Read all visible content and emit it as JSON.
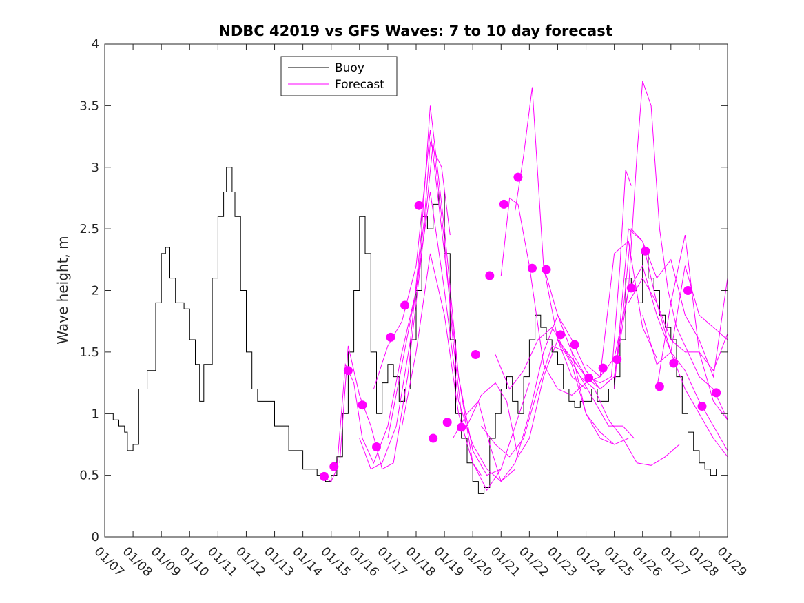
{
  "chart_data": {
    "type": "line",
    "title": "NDBC 42019 vs GFS Waves: 7 to 10 day forecast",
    "xlabel": "",
    "ylabel": "Wave height, m",
    "xlim": [
      0,
      22
    ],
    "ylim": [
      0,
      4
    ],
    "yticks": [
      0,
      0.5,
      1,
      1.5,
      2,
      2.5,
      3,
      3.5,
      4
    ],
    "ytick_labels": [
      "0",
      "0.5",
      "1",
      "1.5",
      "2",
      "2.5",
      "3",
      "3.5",
      "4"
    ],
    "xticks": [
      0,
      1,
      2,
      3,
      4,
      5,
      6,
      7,
      8,
      9,
      10,
      11,
      12,
      13,
      14,
      15,
      16,
      17,
      18,
      19,
      20,
      21,
      22
    ],
    "xtick_labels": [
      "01/07",
      "01/08",
      "01/09",
      "01/10",
      "01/11",
      "01/12",
      "01/13",
      "01/14",
      "01/15",
      "01/16",
      "01/17",
      "01/18",
      "01/19",
      "01/20",
      "01/21",
      "01/22",
      "01/23",
      "01/24",
      "01/25",
      "01/26",
      "01/27",
      "01/28",
      "01/29"
    ],
    "legend": [
      {
        "name": "Buoy",
        "color": "#000000"
      },
      {
        "name": "Forecast",
        "color": "#ff00ff"
      }
    ],
    "colors": {
      "buoy": "#000000",
      "forecast": "#ff00ff"
    },
    "buoy": {
      "name": "Buoy",
      "x": [
        0,
        0.3,
        0.5,
        0.7,
        0.8,
        1.0,
        1.2,
        1.5,
        1.8,
        2.0,
        2.15,
        2.3,
        2.5,
        2.8,
        3.0,
        3.2,
        3.35,
        3.5,
        3.8,
        4.0,
        4.2,
        4.3,
        4.5,
        4.6,
        4.8,
        5.0,
        5.2,
        5.4,
        5.8,
        6.0,
        6.5,
        7.0,
        7.5,
        7.8,
        8.0,
        8.2,
        8.4,
        8.6,
        8.8,
        9.0,
        9.2,
        9.4,
        9.6,
        9.8,
        10.0,
        10.2,
        10.4,
        10.6,
        10.8,
        11.0,
        11.2,
        11.4,
        11.6,
        11.8,
        12.0,
        12.2,
        12.4,
        12.6,
        12.8,
        13.0,
        13.2,
        13.4,
        13.6,
        13.8,
        14.0,
        14.2,
        14.4,
        14.6,
        14.8,
        15.0,
        15.2,
        15.4,
        15.6,
        15.8,
        16.0,
        16.2,
        16.4,
        16.6,
        16.8,
        17.0,
        17.2,
        17.4,
        17.6,
        17.8,
        18.0,
        18.2,
        18.4,
        18.6,
        18.8,
        19.0,
        19.2,
        19.4,
        19.6,
        19.8,
        20.0,
        20.2,
        20.4,
        20.6,
        20.8,
        21.0,
        21.2,
        21.4,
        21.6
      ],
      "y": [
        1.0,
        0.95,
        0.9,
        0.85,
        0.7,
        0.75,
        1.2,
        1.35,
        1.9,
        2.3,
        2.35,
        2.1,
        1.9,
        1.85,
        1.6,
        1.4,
        1.1,
        1.4,
        2.1,
        2.6,
        2.8,
        3.0,
        2.8,
        2.6,
        2.0,
        1.5,
        1.2,
        1.1,
        1.1,
        0.9,
        0.7,
        0.55,
        0.5,
        0.45,
        0.5,
        0.65,
        1.0,
        1.5,
        2.0,
        2.6,
        2.3,
        1.5,
        1.0,
        1.25,
        1.4,
        1.3,
        1.1,
        1.2,
        1.6,
        2.0,
        2.6,
        2.5,
        2.7,
        2.8,
        2.3,
        1.6,
        1.0,
        0.8,
        0.6,
        0.45,
        0.35,
        0.4,
        0.8,
        1.0,
        1.2,
        1.3,
        1.1,
        1.0,
        1.3,
        1.6,
        1.8,
        1.7,
        1.6,
        1.5,
        1.4,
        1.2,
        1.1,
        1.05,
        1.1,
        1.1,
        1.2,
        1.1,
        1.1,
        1.2,
        1.3,
        1.6,
        2.1,
        2.0,
        1.9,
        2.3,
        2.1,
        2.0,
        1.8,
        1.7,
        1.6,
        1.3,
        1.0,
        0.85,
        0.7,
        0.6,
        0.55,
        0.5,
        0.55
      ]
    },
    "forecast_lines": [
      {
        "x": [
          7.75,
          8.0,
          8.2,
          8.5,
          8.8,
          9.1,
          9.5,
          10.0,
          10.5,
          11.0,
          11.3,
          11.5,
          11.9,
          12.2
        ],
        "y": [
          0.48,
          0.45,
          0.55,
          1.4,
          1.25,
          0.8,
          0.6,
          0.9,
          1.5,
          2.0,
          2.6,
          3.2,
          3.0,
          2.45
        ]
      },
      {
        "x": [
          8.3,
          8.6,
          9.0,
          9.4,
          9.8,
          10.2,
          10.7,
          11.2,
          11.6,
          12.0,
          12.3,
          12.6
        ],
        "y": [
          0.6,
          1.55,
          1.15,
          0.9,
          0.55,
          0.6,
          1.3,
          2.3,
          3.2,
          2.4,
          1.6,
          1.0
        ]
      },
      {
        "x": [
          9.0,
          9.4,
          9.8,
          10.3,
          10.8,
          11.2,
          11.5,
          12.0,
          12.5,
          13.0,
          13.3
        ],
        "y": [
          0.8,
          0.55,
          0.6,
          0.9,
          1.6,
          2.5,
          3.5,
          2.5,
          1.3,
          0.6,
          0.5
        ]
      },
      {
        "x": [
          9.5,
          10.0,
          10.5,
          11.0,
          11.5,
          12.0,
          12.5,
          13.0,
          13.5,
          14.0
        ],
        "y": [
          1.2,
          1.55,
          1.75,
          2.2,
          3.3,
          2.3,
          1.3,
          0.7,
          0.5,
          0.55
        ]
      },
      {
        "x": [
          10.0,
          10.5,
          11.0,
          11.5,
          12.0,
          12.5,
          13.0,
          13.5,
          14.0,
          14.5
        ],
        "y": [
          0.8,
          1.4,
          2.0,
          2.8,
          2.0,
          1.1,
          0.75,
          0.55,
          0.45,
          0.55
        ]
      },
      {
        "x": [
          10.5,
          11.0,
          11.5,
          12.0,
          12.5,
          13.0,
          13.5,
          14.0,
          14.5,
          15.0
        ],
        "y": [
          0.9,
          1.5,
          2.3,
          1.8,
          1.0,
          0.6,
          0.38,
          0.55,
          0.9,
          1.25
        ]
      },
      {
        "x": [
          12.3,
          12.8,
          13.2,
          13.6,
          14.0,
          14.5,
          15.0,
          15.5,
          16.0,
          16.5,
          17.0,
          17.5,
          18.0
        ],
        "y": [
          0.8,
          1.0,
          1.1,
          0.75,
          0.45,
          0.6,
          1.0,
          1.5,
          1.8,
          1.5,
          1.0,
          0.8,
          0.75
        ]
      },
      {
        "x": [
          12.8,
          13.3,
          13.8,
          14.2,
          14.6,
          15.0,
          15.5,
          16.0,
          16.5,
          17.0,
          17.5,
          18.0,
          18.5
        ],
        "y": [
          0.9,
          1.15,
          1.25,
          1.1,
          0.65,
          0.8,
          1.3,
          1.6,
          1.4,
          1.0,
          0.85,
          0.75,
          0.8
        ]
      },
      {
        "x": [
          13.3,
          13.8,
          14.3,
          14.8,
          15.3,
          15.8,
          16.3,
          16.8,
          17.3,
          17.8,
          18.3,
          18.7
        ],
        "y": [
          0.9,
          0.75,
          0.65,
          0.8,
          1.2,
          1.55,
          1.5,
          1.3,
          1.1,
          0.9,
          0.9,
          0.8
        ]
      },
      {
        "x": [
          13.8,
          14.3,
          14.8,
          15.3,
          15.8,
          16.3,
          16.8,
          17.3,
          17.8,
          18.3,
          18.8,
          19.3,
          19.8,
          20.3
        ],
        "y": [
          1.48,
          1.2,
          1.35,
          1.6,
          1.7,
          1.5,
          1.3,
          1.2,
          0.95,
          0.8,
          0.6,
          0.58,
          0.65,
          0.75
        ]
      },
      {
        "x": [
          14.0,
          14.3,
          14.6,
          15.0,
          15.5,
          16.0,
          16.5,
          17.0,
          17.5,
          18.0,
          18.5,
          19.0,
          19.5
        ],
        "y": [
          2.12,
          2.75,
          2.7,
          2.2,
          1.4,
          1.2,
          1.15,
          1.25,
          1.3,
          2.3,
          2.4,
          1.7,
          1.45
        ]
      },
      {
        "x": [
          14.5,
          14.8,
          15.1,
          15.5,
          16.0,
          16.5,
          17.0,
          17.5,
          18.0,
          18.5,
          19.0,
          19.5,
          20.0,
          20.5,
          21.0,
          21.5,
          22.0
        ],
        "y": [
          2.65,
          3.1,
          3.65,
          2.2,
          1.6,
          1.3,
          1.2,
          1.2,
          1.2,
          2.5,
          2.4,
          2.1,
          2.25,
          1.8,
          1.6,
          1.3,
          2.1
        ]
      },
      {
        "x": [
          15.5,
          16.0,
          16.5,
          17.0,
          17.5,
          18.0,
          18.5,
          19.0,
          19.5,
          20.0,
          20.5,
          21.0,
          21.5,
          22.0
        ],
        "y": [
          2.2,
          1.8,
          1.6,
          1.35,
          1.2,
          1.3,
          2.0,
          2.2,
          1.8,
          1.5,
          1.35,
          1.1,
          0.9,
          0.7
        ]
      },
      {
        "x": [
          16.0,
          16.5,
          17.0,
          17.5,
          18.0,
          18.3,
          18.6,
          19.0,
          19.5,
          20.0,
          20.5,
          21.0,
          21.5,
          22.0
        ],
        "y": [
          1.6,
          1.45,
          1.3,
          1.2,
          1.3,
          1.8,
          2.5,
          2.4,
          1.9,
          1.5,
          1.2,
          1.0,
          0.8,
          0.65
        ]
      },
      {
        "x": [
          16.5,
          17.0,
          17.5,
          17.9,
          18.2,
          18.4,
          18.6
        ],
        "y": [
          1.5,
          1.3,
          1.25,
          1.3,
          2.2,
          2.98,
          2.85
        ]
      },
      {
        "x": [
          17.0,
          17.5,
          18.0,
          18.5,
          18.8,
          19.0,
          19.3,
          19.6,
          19.9,
          20.2,
          20.6,
          21.0,
          21.5,
          22.0
        ],
        "y": [
          1.4,
          1.3,
          1.45,
          2.0,
          3.1,
          3.7,
          3.5,
          2.5,
          2.0,
          1.7,
          1.5,
          1.3,
          1.2,
          0.95
        ]
      },
      {
        "x": [
          18.5,
          19.0,
          19.5,
          20.0,
          20.5,
          21.0,
          21.5,
          22.0
        ],
        "y": [
          1.9,
          2.1,
          1.9,
          1.6,
          1.5,
          1.5,
          1.35,
          1.65
        ]
      },
      {
        "x": [
          19.0,
          19.5,
          20.0,
          20.5,
          21.0,
          21.5,
          22.0
        ],
        "y": [
          1.8,
          1.4,
          1.5,
          2.2,
          1.8,
          1.7,
          1.6
        ]
      },
      {
        "x": [
          19.5,
          20.0,
          20.5,
          21.0,
          21.5,
          22.0
        ],
        "y": [
          1.2,
          1.9,
          2.45,
          1.5,
          1.1,
          0.95
        ]
      }
    ],
    "forecast_markers": {
      "name": "Forecast",
      "x": [
        7.75,
        8.1,
        8.6,
        9.1,
        9.6,
        10.1,
        10.6,
        11.1,
        11.6,
        12.1,
        12.6,
        13.1,
        13.6,
        14.1,
        14.6,
        15.1,
        15.6,
        16.1,
        16.6,
        17.1,
        17.6,
        18.1,
        18.6,
        19.1,
        19.6,
        20.1,
        20.6,
        21.1,
        21.6
      ],
      "y": [
        0.49,
        0.57,
        1.35,
        1.07,
        0.73,
        1.62,
        1.88,
        2.69,
        0.8,
        0.93,
        0.89,
        1.48,
        2.12,
        2.7,
        2.92,
        2.18,
        2.17,
        1.64,
        1.56,
        1.29,
        1.37,
        1.44,
        2.02,
        2.32,
        1.22,
        1.41,
        2.0,
        1.06,
        1.17
      ]
    }
  }
}
